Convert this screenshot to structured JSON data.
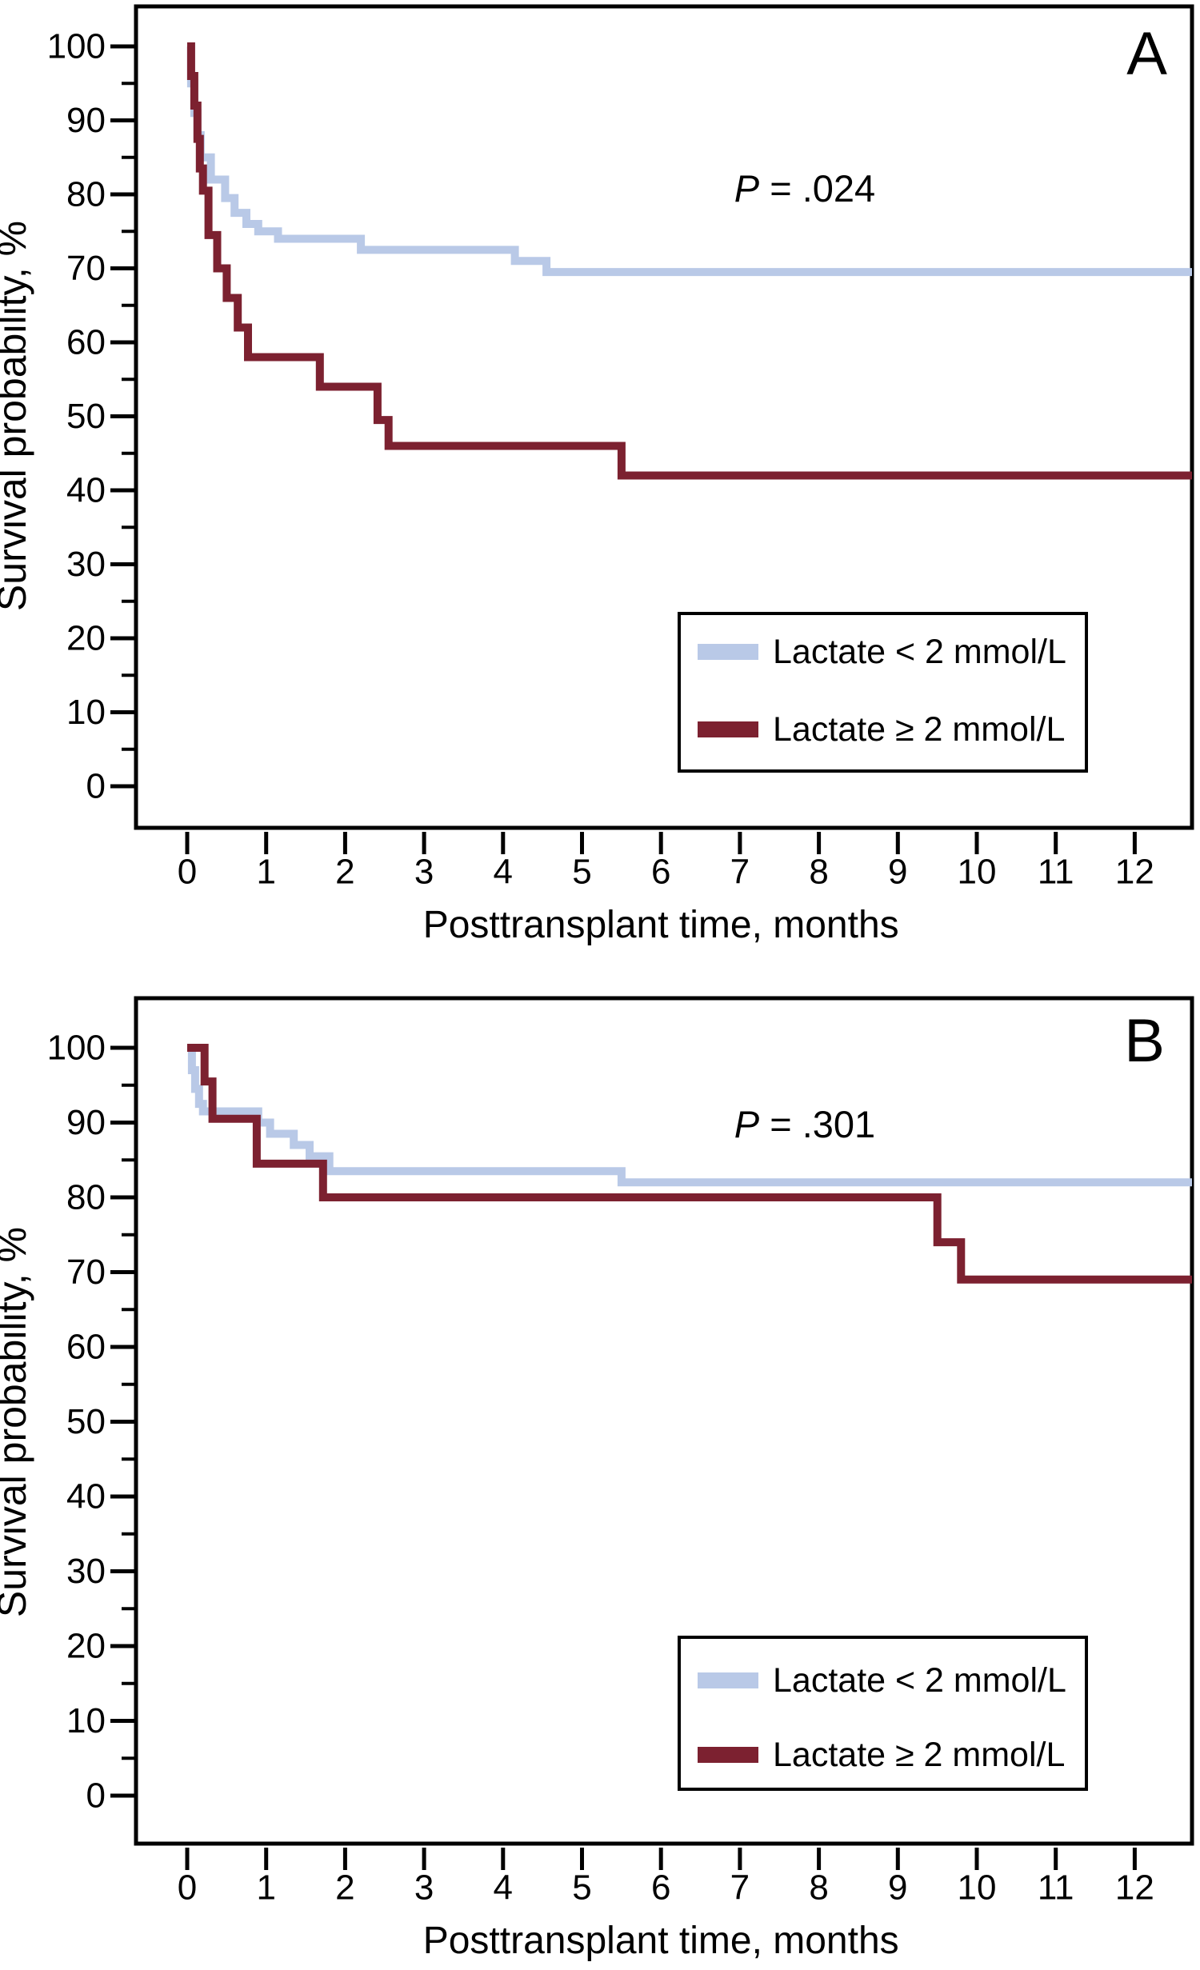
{
  "figure": {
    "background": "#ffffff",
    "axis_color": "#000000",
    "accent_blue": "#b9c9e7",
    "accent_maroon": "#7c2130"
  },
  "chart_data": [
    {
      "type": "line",
      "subtype": "kaplan-meier-step",
      "panel_label": "A",
      "p_value_text": "P = .024",
      "p_value": {
        "symbol": "P",
        "rest": " = .024"
      },
      "xlabel": "Posttransplant time, months",
      "ylabel": "Survival probability, %",
      "xlim": [
        0,
        12.7
      ],
      "ylim": [
        0,
        100
      ],
      "x_ticks": [
        0,
        1,
        2,
        3,
        4,
        5,
        6,
        7,
        8,
        9,
        10,
        11,
        12
      ],
      "y_ticks": [
        100,
        90,
        80,
        70,
        60,
        50,
        40,
        30,
        20,
        10,
        0
      ],
      "y_minor_ticks": [
        95,
        85,
        75,
        65,
        55,
        45,
        35,
        25,
        15,
        5
      ],
      "grid": false,
      "legend_position": "inset lower right",
      "legend": [
        {
          "label": "Lactate < 2 mmol/L",
          "color": "#b9c9e7"
        },
        {
          "label": "Lactate ≥ 2 mmol/L",
          "color": "#7c2130"
        }
      ],
      "series": [
        {
          "name": "Lactate < 2 mmol/L",
          "color": "#b9c9e7",
          "steps_month_pct": [
            [
              0,
              100
            ],
            [
              0.05,
              95
            ],
            [
              0.09,
              91
            ],
            [
              0.13,
              88
            ],
            [
              0.17,
              85
            ],
            [
              0.3,
              82
            ],
            [
              0.48,
              79.5
            ],
            [
              0.6,
              77.5
            ],
            [
              0.75,
              76
            ],
            [
              0.9,
              75
            ],
            [
              1.15,
              74
            ],
            [
              2.2,
              72.5
            ],
            [
              4.15,
              71
            ],
            [
              4.55,
              69.5
            ]
          ],
          "end_month": 12.7,
          "final_pct": 69.5
        },
        {
          "name": "Lactate ≥ 2 mmol/L",
          "color": "#7c2130",
          "steps_month_pct": [
            [
              0,
              100
            ],
            [
              0.05,
              96
            ],
            [
              0.09,
              92
            ],
            [
              0.13,
              87.5
            ],
            [
              0.16,
              83.5
            ],
            [
              0.2,
              80.5
            ],
            [
              0.27,
              74.5
            ],
            [
              0.38,
              70
            ],
            [
              0.5,
              66
            ],
            [
              0.64,
              62
            ],
            [
              0.77,
              58
            ],
            [
              1.68,
              54
            ],
            [
              2.41,
              49.5
            ],
            [
              2.55,
              46
            ],
            [
              5.5,
              42
            ]
          ],
          "end_month": 12.7,
          "final_pct": 42
        }
      ]
    },
    {
      "type": "line",
      "subtype": "kaplan-meier-step",
      "panel_label": "B",
      "p_value_text": "P = .301",
      "p_value": {
        "symbol": "P",
        "rest": " = .301"
      },
      "xlabel": "Posttransplant time, months",
      "ylabel": "Survival probability, %",
      "xlim": [
        0,
        12.7
      ],
      "ylim": [
        0,
        100
      ],
      "x_ticks": [
        0,
        1,
        2,
        3,
        4,
        5,
        6,
        7,
        8,
        9,
        10,
        11,
        12
      ],
      "y_ticks": [
        100,
        90,
        80,
        70,
        60,
        50,
        40,
        30,
        20,
        10,
        0
      ],
      "y_minor_ticks": [
        95,
        85,
        75,
        65,
        55,
        45,
        35,
        25,
        15,
        5
      ],
      "grid": false,
      "legend_position": "inset lower right",
      "legend": [
        {
          "label": "Lactate < 2 mmol/L",
          "color": "#b9c9e7"
        },
        {
          "label": "Lactate ≥ 2 mmol/L",
          "color": "#7c2130"
        }
      ],
      "series": [
        {
          "name": "Lactate < 2 mmol/L",
          "color": "#b9c9e7",
          "steps_month_pct": [
            [
              0,
              100
            ],
            [
              0.06,
              97
            ],
            [
              0.1,
              94.5
            ],
            [
              0.15,
              92.5
            ],
            [
              0.2,
              91.5
            ],
            [
              0.9,
              90
            ],
            [
              1.05,
              88.5
            ],
            [
              1.35,
              87
            ],
            [
              1.55,
              85.5
            ],
            [
              1.8,
              83.5
            ],
            [
              5.5,
              82
            ]
          ],
          "end_month": 12.7,
          "final_pct": 82
        },
        {
          "name": "Lactate ≥ 2 mmol/L",
          "color": "#7c2130",
          "steps_month_pct": [
            [
              0,
              100
            ],
            [
              0.22,
              95.5
            ],
            [
              0.32,
              90.5
            ],
            [
              0.88,
              84.5
            ],
            [
              1.72,
              80
            ],
            [
              9.5,
              74
            ],
            [
              9.8,
              69
            ]
          ],
          "end_month": 12.7,
          "final_pct": 69
        }
      ]
    }
  ]
}
